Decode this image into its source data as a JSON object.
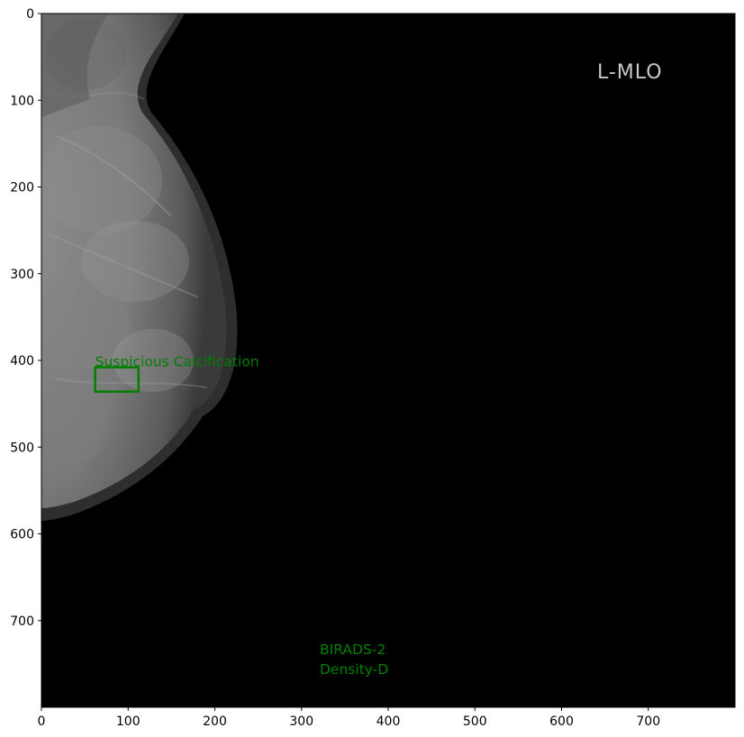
{
  "view_label": "L-MLO",
  "annotation": {
    "label": "Suspicious Calcification",
    "box": {
      "x0": 62,
      "y0": 408,
      "x1": 112,
      "y1": 436
    },
    "color": "#008000"
  },
  "assessment": {
    "birads": "BIRADS-2",
    "density": "Density-D"
  },
  "axes": {
    "x_range": [
      0,
      800
    ],
    "y_range": [
      0,
      800
    ],
    "x_ticks": [
      0,
      100,
      200,
      300,
      400,
      500,
      600,
      700
    ],
    "y_ticks": [
      0,
      100,
      200,
      300,
      400,
      500,
      600,
      700
    ]
  },
  "colors": {
    "image_background": "#000000",
    "annotation": "#008000",
    "view_label": "#c8c8c8"
  }
}
